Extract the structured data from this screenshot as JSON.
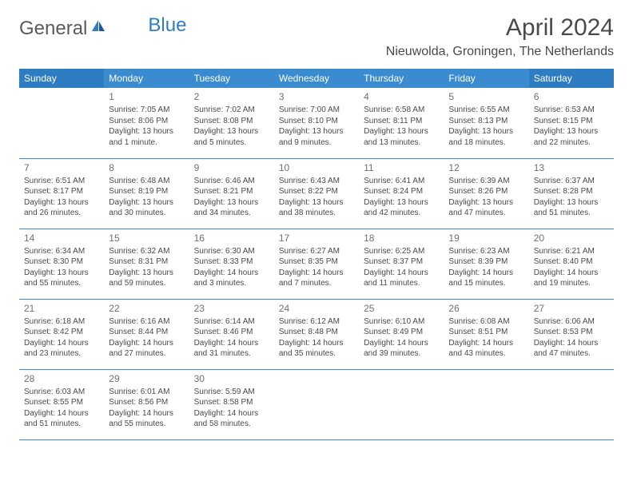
{
  "logo": {
    "text1": "General",
    "text2": "Blue"
  },
  "title": "April 2024",
  "location": "Nieuwolda, Groningen, The Netherlands",
  "colors": {
    "header_bg": "#3a8bd0",
    "header_bg_weekend": "#2e7cc2",
    "border": "#3a8bd0",
    "text": "#4a4a4a",
    "daynum": "#707070"
  },
  "dayHeaders": [
    "Sunday",
    "Monday",
    "Tuesday",
    "Wednesday",
    "Thursday",
    "Friday",
    "Saturday"
  ],
  "weeks": [
    [
      null,
      {
        "n": "1",
        "sr": "7:05 AM",
        "ss": "8:06 PM",
        "dl": "13 hours and 1 minute."
      },
      {
        "n": "2",
        "sr": "7:02 AM",
        "ss": "8:08 PM",
        "dl": "13 hours and 5 minutes."
      },
      {
        "n": "3",
        "sr": "7:00 AM",
        "ss": "8:10 PM",
        "dl": "13 hours and 9 minutes."
      },
      {
        "n": "4",
        "sr": "6:58 AM",
        "ss": "8:11 PM",
        "dl": "13 hours and 13 minutes."
      },
      {
        "n": "5",
        "sr": "6:55 AM",
        "ss": "8:13 PM",
        "dl": "13 hours and 18 minutes."
      },
      {
        "n": "6",
        "sr": "6:53 AM",
        "ss": "8:15 PM",
        "dl": "13 hours and 22 minutes."
      }
    ],
    [
      {
        "n": "7",
        "sr": "6:51 AM",
        "ss": "8:17 PM",
        "dl": "13 hours and 26 minutes."
      },
      {
        "n": "8",
        "sr": "6:48 AM",
        "ss": "8:19 PM",
        "dl": "13 hours and 30 minutes."
      },
      {
        "n": "9",
        "sr": "6:46 AM",
        "ss": "8:21 PM",
        "dl": "13 hours and 34 minutes."
      },
      {
        "n": "10",
        "sr": "6:43 AM",
        "ss": "8:22 PM",
        "dl": "13 hours and 38 minutes."
      },
      {
        "n": "11",
        "sr": "6:41 AM",
        "ss": "8:24 PM",
        "dl": "13 hours and 42 minutes."
      },
      {
        "n": "12",
        "sr": "6:39 AM",
        "ss": "8:26 PM",
        "dl": "13 hours and 47 minutes."
      },
      {
        "n": "13",
        "sr": "6:37 AM",
        "ss": "8:28 PM",
        "dl": "13 hours and 51 minutes."
      }
    ],
    [
      {
        "n": "14",
        "sr": "6:34 AM",
        "ss": "8:30 PM",
        "dl": "13 hours and 55 minutes."
      },
      {
        "n": "15",
        "sr": "6:32 AM",
        "ss": "8:31 PM",
        "dl": "13 hours and 59 minutes."
      },
      {
        "n": "16",
        "sr": "6:30 AM",
        "ss": "8:33 PM",
        "dl": "14 hours and 3 minutes."
      },
      {
        "n": "17",
        "sr": "6:27 AM",
        "ss": "8:35 PM",
        "dl": "14 hours and 7 minutes."
      },
      {
        "n": "18",
        "sr": "6:25 AM",
        "ss": "8:37 PM",
        "dl": "14 hours and 11 minutes."
      },
      {
        "n": "19",
        "sr": "6:23 AM",
        "ss": "8:39 PM",
        "dl": "14 hours and 15 minutes."
      },
      {
        "n": "20",
        "sr": "6:21 AM",
        "ss": "8:40 PM",
        "dl": "14 hours and 19 minutes."
      }
    ],
    [
      {
        "n": "21",
        "sr": "6:18 AM",
        "ss": "8:42 PM",
        "dl": "14 hours and 23 minutes."
      },
      {
        "n": "22",
        "sr": "6:16 AM",
        "ss": "8:44 PM",
        "dl": "14 hours and 27 minutes."
      },
      {
        "n": "23",
        "sr": "6:14 AM",
        "ss": "8:46 PM",
        "dl": "14 hours and 31 minutes."
      },
      {
        "n": "24",
        "sr": "6:12 AM",
        "ss": "8:48 PM",
        "dl": "14 hours and 35 minutes."
      },
      {
        "n": "25",
        "sr": "6:10 AM",
        "ss": "8:49 PM",
        "dl": "14 hours and 39 minutes."
      },
      {
        "n": "26",
        "sr": "6:08 AM",
        "ss": "8:51 PM",
        "dl": "14 hours and 43 minutes."
      },
      {
        "n": "27",
        "sr": "6:06 AM",
        "ss": "8:53 PM",
        "dl": "14 hours and 47 minutes."
      }
    ],
    [
      {
        "n": "28",
        "sr": "6:03 AM",
        "ss": "8:55 PM",
        "dl": "14 hours and 51 minutes."
      },
      {
        "n": "29",
        "sr": "6:01 AM",
        "ss": "8:56 PM",
        "dl": "14 hours and 55 minutes."
      },
      {
        "n": "30",
        "sr": "5:59 AM",
        "ss": "8:58 PM",
        "dl": "14 hours and 58 minutes."
      },
      null,
      null,
      null,
      null
    ]
  ],
  "labels": {
    "sunrise": "Sunrise: ",
    "sunset": "Sunset: ",
    "daylight": "Daylight: "
  }
}
